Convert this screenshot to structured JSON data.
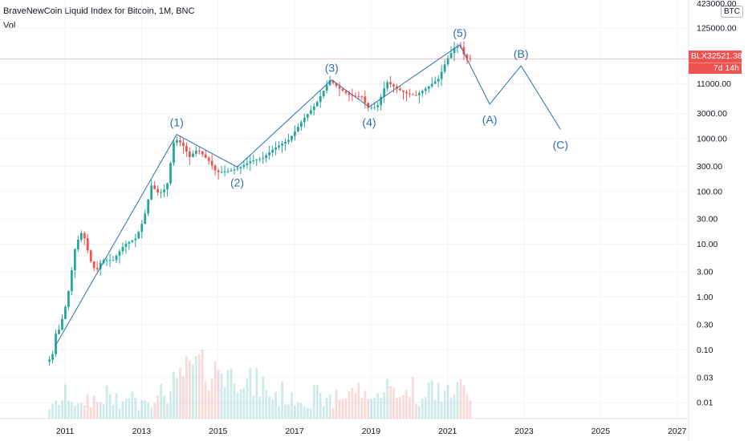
{
  "header": {
    "title": "BraveNewCoin Liquid Index for Bitcoin, 1M, BNC",
    "indicator": "Vol",
    "unit": "BTC",
    "top_tick": "423000.00"
  },
  "price_tag": {
    "symbol": "BLX",
    "value": "32521.38",
    "countdown": "7d 14h"
  },
  "colors": {
    "up": "#26a69a",
    "down": "#ef5350",
    "wave_line": "#2a6fb2",
    "price_line": "#ef5350"
  },
  "chart_data": {
    "type": "candlestick",
    "scale": "log",
    "x_ticks": [
      "2011",
      "2013",
      "2015",
      "2017",
      "2019",
      "2021",
      "2023",
      "2025",
      "2027"
    ],
    "y_ticks": [
      "125000.00",
      "11000.00",
      "3000.00",
      "1000.00",
      "300.00",
      "100.00",
      "30.00",
      "10.00",
      "3.00",
      "1.00",
      "0.30",
      "0.10",
      "0.03",
      "0.01"
    ],
    "ylim": [
      0.005,
      423000
    ],
    "xlim": [
      2009.3,
      2027.3
    ],
    "current_price": 32521.38,
    "price_series": [
      [
        2010.55,
        0.06
      ],
      [
        2010.7,
        0.07
      ],
      [
        2010.8,
        0.2
      ],
      [
        2010.9,
        0.25
      ],
      [
        2011.1,
        0.9
      ],
      [
        2011.3,
        8
      ],
      [
        2011.45,
        17
      ],
      [
        2011.55,
        13
      ],
      [
        2011.7,
        5
      ],
      [
        2011.85,
        3
      ],
      [
        2012.0,
        5
      ],
      [
        2012.3,
        5
      ],
      [
        2012.6,
        10
      ],
      [
        2012.9,
        13
      ],
      [
        2013.1,
        30
      ],
      [
        2013.3,
        130
      ],
      [
        2013.5,
        90
      ],
      [
        2013.7,
        120
      ],
      [
        2013.9,
        1000
      ],
      [
        2014.1,
        800
      ],
      [
        2014.3,
        450
      ],
      [
        2014.5,
        630
      ],
      [
        2014.8,
        380
      ],
      [
        2015.0,
        230
      ],
      [
        2015.3,
        240
      ],
      [
        2015.6,
        280
      ],
      [
        2015.9,
        380
      ],
      [
        2016.2,
        420
      ],
      [
        2016.5,
        650
      ],
      [
        2016.9,
        960
      ],
      [
        2017.3,
        2500
      ],
      [
        2017.6,
        4500
      ],
      [
        2017.96,
        13000
      ],
      [
        2018.2,
        9000
      ],
      [
        2018.5,
        6500
      ],
      [
        2018.8,
        6300
      ],
      [
        2018.95,
        3800
      ],
      [
        2019.2,
        4000
      ],
      [
        2019.45,
        12000
      ],
      [
        2019.7,
        9000
      ],
      [
        2019.96,
        7200
      ],
      [
        2020.2,
        6500
      ],
      [
        2020.5,
        9200
      ],
      [
        2020.8,
        13500
      ],
      [
        2021.0,
        29000
      ],
      [
        2021.25,
        58000
      ],
      [
        2021.38,
        55000
      ],
      [
        2021.5,
        35000
      ],
      [
        2021.58,
        32521.38
      ]
    ],
    "elliott_wave_projection": {
      "points": [
        [
          2010.75,
          0.12
        ],
        [
          2013.92,
          1200
        ],
        [
          2015.5,
          290
        ],
        [
          2017.97,
          13000
        ],
        [
          2018.95,
          4000
        ],
        [
          2021.32,
          60000
        ],
        [
          2022.1,
          4500
        ],
        [
          2022.92,
          24000
        ],
        [
          2023.95,
          1500
        ]
      ],
      "labels": [
        {
          "text": "(1)",
          "x": 2013.92,
          "y": 1200,
          "pos": "above"
        },
        {
          "text": "(2)",
          "x": 2015.5,
          "y": 290,
          "pos": "below"
        },
        {
          "text": "(3)",
          "x": 2017.97,
          "y": 13000,
          "pos": "above"
        },
        {
          "text": "(4)",
          "x": 2018.95,
          "y": 4000,
          "pos": "below"
        },
        {
          "text": "(5)",
          "x": 2021.32,
          "y": 60000,
          "pos": "above"
        },
        {
          "text": "(A)",
          "x": 2022.1,
          "y": 4500,
          "pos": "below"
        },
        {
          "text": "(B)",
          "x": 2022.92,
          "y": 24000,
          "pos": "above"
        },
        {
          "text": "(C)",
          "x": 2023.95,
          "y": 1500,
          "pos": "below"
        }
      ]
    }
  }
}
